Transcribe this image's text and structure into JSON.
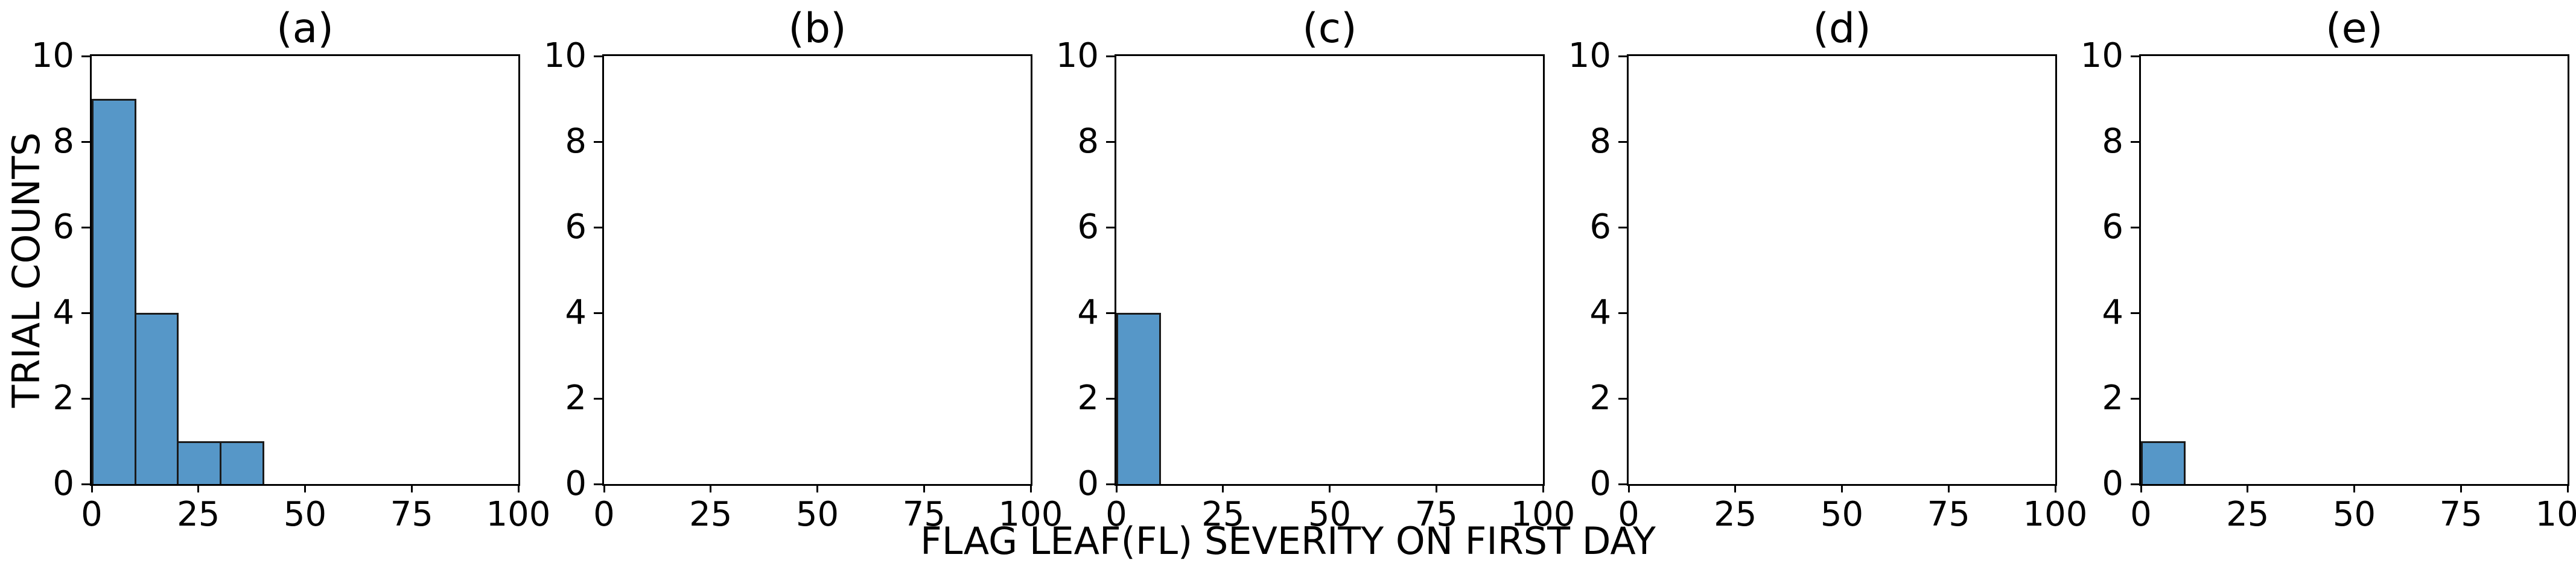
{
  "chart_data": {
    "type": "bar",
    "subtype": "histogram",
    "xlabel": "FLAG LEAF(FL) SEVERITY ON FIRST DAY",
    "ylabel": "TRIAL COUNTS",
    "xlim": [
      0,
      100
    ],
    "ylim": [
      0,
      10
    ],
    "x_ticks": [
      0,
      25,
      50,
      75,
      100
    ],
    "y_ticks": [
      0,
      2,
      4,
      6,
      8,
      10
    ],
    "bin_width": 10,
    "grid": false,
    "legend_position": "none",
    "bar_fill_color": "#5697c8",
    "bar_edge_color": "#1b1b1b",
    "axis_color": "#000000",
    "panels": [
      {
        "label": "(a)",
        "bin_starts": [
          0,
          10,
          20,
          30
        ],
        "counts": [
          9,
          4,
          1,
          1
        ]
      },
      {
        "label": "(b)",
        "bin_starts": [],
        "counts": []
      },
      {
        "label": "(c)",
        "bin_starts": [
          0
        ],
        "counts": [
          4
        ]
      },
      {
        "label": "(d)",
        "bin_starts": [],
        "counts": []
      },
      {
        "label": "(e)",
        "bin_starts": [
          0
        ],
        "counts": [
          1
        ]
      }
    ]
  }
}
